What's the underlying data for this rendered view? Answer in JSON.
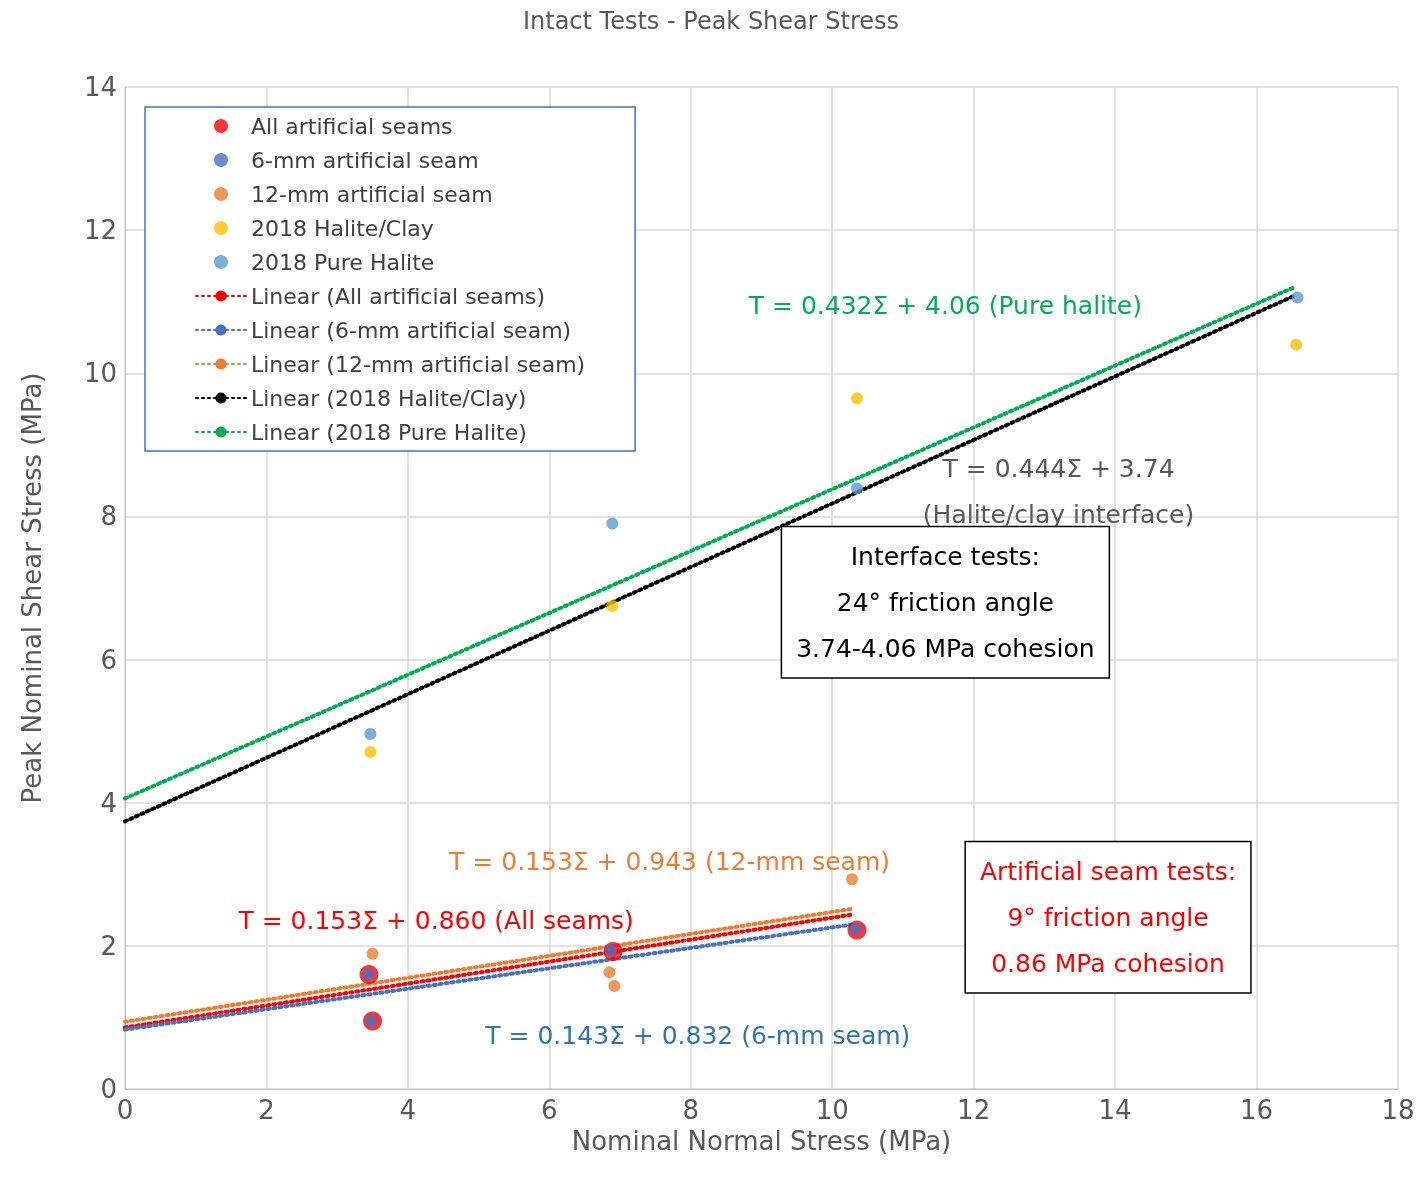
{
  "chart_data": {
    "type": "scatter",
    "title": "Intact Tests - Peak Shear Stress",
    "xlabel": "Nominal Normal Stress (MPa)",
    "ylabel": "Peak Nominal Shear Stress (MPa)",
    "xlim": [
      0,
      18
    ],
    "xticks": [
      0,
      2,
      4,
      6,
      8,
      10,
      12,
      14,
      16,
      18
    ],
    "ylim": [
      0,
      14
    ],
    "yticks": [
      0,
      2,
      4,
      6,
      8,
      10,
      12,
      14
    ],
    "grid": true,
    "legend": "top left",
    "marker": "circle",
    "series": [
      {
        "name": "All artificial seams",
        "color": "#ff0000",
        "x": [
          3.45,
          3.5,
          6.9,
          10.35
        ],
        "values": [
          1.6,
          0.95,
          1.92,
          2.22
        ]
      },
      {
        "name": "6-mm artificial seam",
        "color": "#4472c4",
        "x": [
          3.44,
          3.48,
          6.87,
          10.33
        ],
        "values": [
          1.6,
          0.95,
          1.94,
          2.24
        ]
      },
      {
        "name": "12-mm artificial seam",
        "color": "#ed7d31",
        "x": [
          3.5,
          6.85,
          6.92,
          10.28
        ],
        "values": [
          1.89,
          1.63,
          1.44,
          2.93
        ]
      },
      {
        "name": "2018 Halite/Clay",
        "color": "#ffc000",
        "x": [
          3.47,
          6.89,
          10.35,
          16.56
        ],
        "values": [
          4.71,
          6.75,
          9.65,
          10.4
        ]
      },
      {
        "name": "2018 Pure Halite",
        "color": "#5b9bd5",
        "x": [
          3.47,
          6.89,
          10.35,
          16.58
        ],
        "values": [
          4.96,
          7.9,
          8.39,
          11.06
        ]
      },
      {
        "name": "Linear (All artificial seams)",
        "type": "line",
        "line_style": "dotted",
        "marker": "none",
        "color": "#ff0000",
        "x": [
          0,
          10.3
        ],
        "values": [
          0.86,
          2.44
        ]
      },
      {
        "name": "Linear (6-mm artificial seam)",
        "type": "line",
        "line_style": "dotted",
        "marker": "none",
        "color": "#4472c4",
        "x": [
          0,
          10.3
        ],
        "values": [
          0.83,
          2.3
        ]
      },
      {
        "name": "Linear (12-mm artificial seam)",
        "type": "line",
        "line_style": "dotted",
        "marker": "none",
        "color": "#ed7d31",
        "x": [
          0,
          10.3
        ],
        "values": [
          0.94,
          2.52
        ]
      },
      {
        "name": "Linear (2018 Halite/Clay)",
        "type": "line",
        "line_style": "dotted",
        "marker": "none",
        "color": "#000000",
        "x": [
          0,
          16.55
        ],
        "values": [
          3.74,
          11.09
        ]
      },
      {
        "name": "Linear (2018 Pure Halite)",
        "type": "line",
        "line_style": "dotted",
        "marker": "none",
        "color": "#00b050",
        "x": [
          0,
          16.55
        ],
        "values": [
          4.06,
          11.21
        ]
      }
    ],
    "annotations": [
      "T = 0.432Σ + 4.06 (Pure halite)",
      "T = 0.444Σ + 3.74\n(Halite/clay interface)",
      "T = 0.153Σ + 0.943 (12-mm seam)",
      "T = 0.153Σ + 0.860 (All seams)",
      "T = 0.143Σ + 0.832 (6-mm seam)",
      "Interface tests:\n24° friction angle\n3.74-4.06 MPa cohesion",
      "Artificial seam tests:\n9° friction angle\n0.86 MPa cohesion"
    ]
  }
}
